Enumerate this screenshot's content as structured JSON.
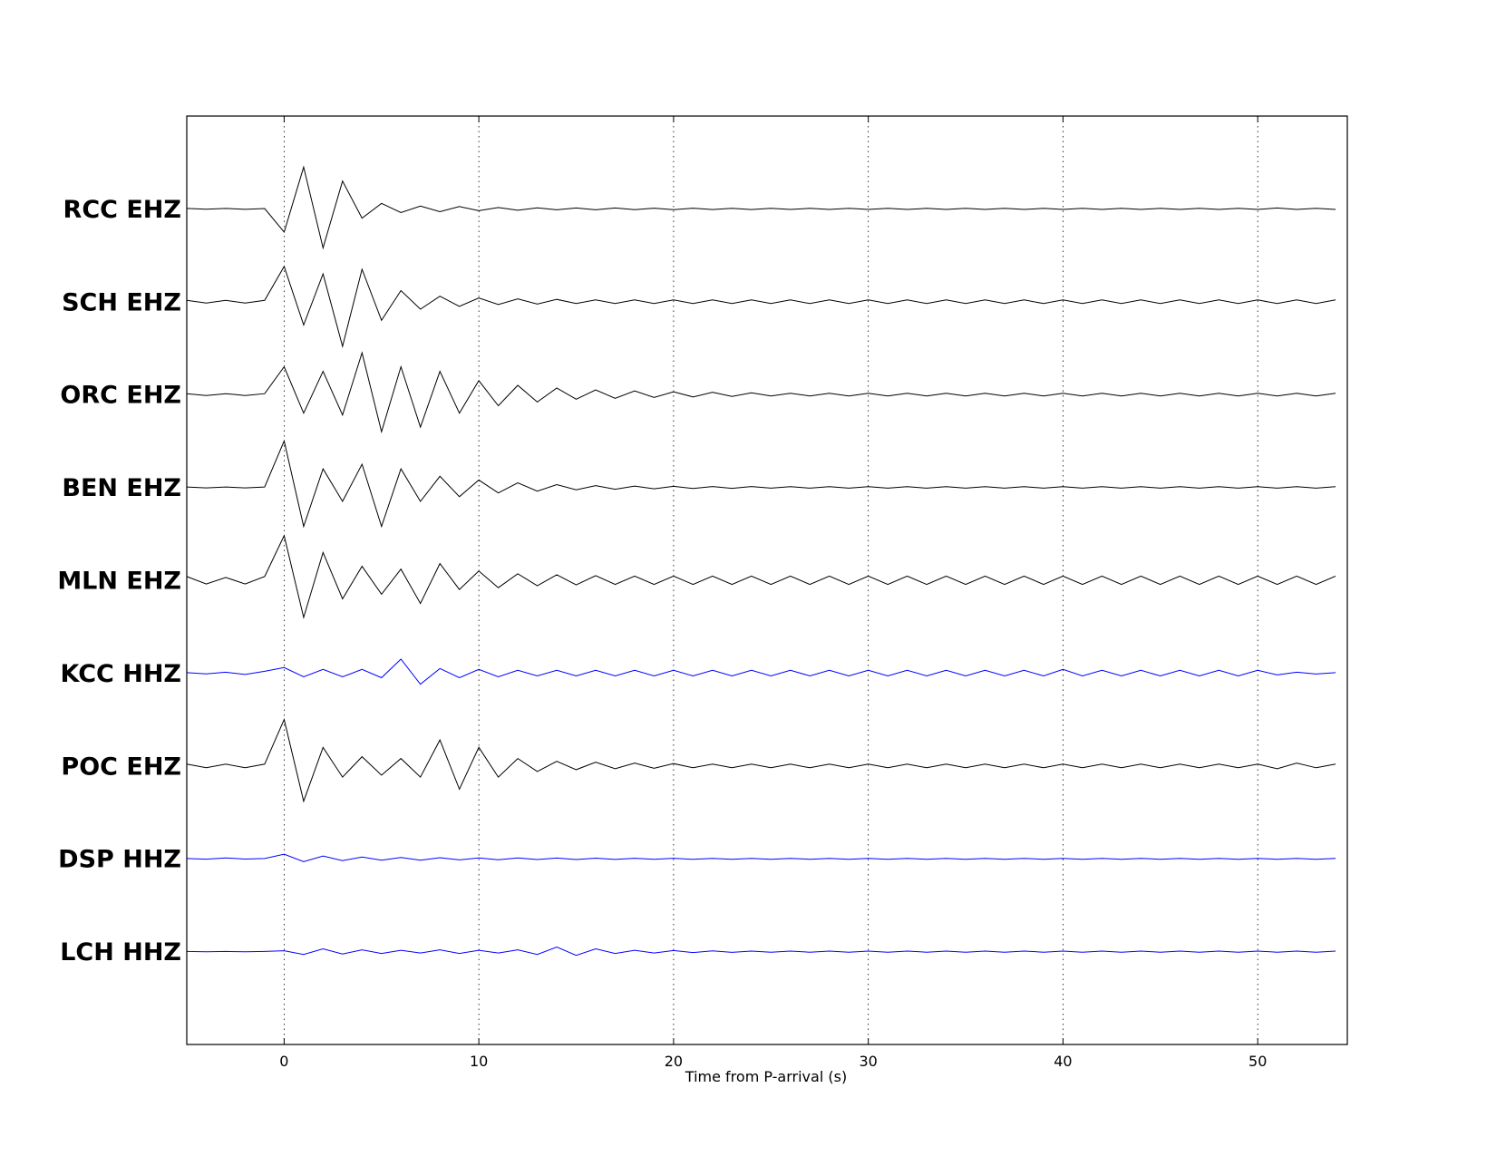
{
  "chart_data": {
    "type": "line",
    "xlabel": "Time from P-arrival (s)",
    "xlim": [
      -5,
      54.6
    ],
    "xticks": [
      0,
      10,
      20,
      30,
      40,
      50
    ],
    "grid": true,
    "x": [
      -5,
      -4,
      -3,
      -2,
      -1,
      0,
      1,
      2,
      3,
      4,
      5,
      6,
      7,
      8,
      9,
      10,
      11,
      12,
      13,
      14,
      15,
      16,
      17,
      18,
      19,
      20,
      21,
      22,
      23,
      24,
      25,
      26,
      27,
      28,
      29,
      30,
      31,
      32,
      33,
      34,
      35,
      36,
      37,
      38,
      39,
      40,
      41,
      42,
      43,
      44,
      45,
      46,
      47,
      48,
      49,
      50,
      51,
      52,
      53,
      54
    ],
    "series": [
      {
        "name": "RCC EHZ",
        "color": "#000000",
        "values": [
          0.005,
          -0.004,
          0.005,
          -0.005,
          0.004,
          -0.25,
          0.45,
          -0.42,
          0.3,
          -0.1,
          0.06,
          -0.04,
          0.03,
          -0.03,
          0.025,
          -0.02,
          0.015,
          -0.015,
          0.012,
          -0.01,
          0.01,
          -0.01,
          0.01,
          -0.008,
          0.008,
          -0.008,
          0.008,
          -0.007,
          0.007,
          -0.007,
          0.007,
          -0.006,
          0.006,
          -0.006,
          0.006,
          -0.006,
          0.006,
          -0.006,
          0.006,
          -0.006,
          0.006,
          -0.006,
          0.006,
          -0.006,
          0.006,
          -0.006,
          0.006,
          -0.006,
          0.006,
          -0.006,
          0.006,
          -0.006,
          0.006,
          -0.006,
          0.006,
          -0.006,
          0.01,
          -0.006,
          0.006,
          -0.006
        ]
      },
      {
        "name": "SCH EHZ",
        "color": "#000000",
        "values": [
          0.015,
          -0.015,
          0.015,
          -0.015,
          0.015,
          0.38,
          -0.25,
          0.3,
          -0.48,
          0.35,
          -0.2,
          0.12,
          -0.08,
          0.06,
          -0.05,
          0.04,
          -0.03,
          0.03,
          -0.025,
          0.025,
          -0.02,
          0.02,
          -0.02,
          0.02,
          -0.02,
          0.02,
          -0.02,
          0.02,
          -0.02,
          0.02,
          -0.02,
          0.02,
          -0.02,
          0.02,
          -0.02,
          0.02,
          -0.02,
          0.02,
          -0.02,
          0.02,
          -0.02,
          0.02,
          -0.02,
          0.02,
          -0.02,
          0.02,
          -0.02,
          0.02,
          -0.02,
          0.02,
          -0.02,
          0.02,
          -0.02,
          0.02,
          -0.02,
          0.02,
          -0.02,
          0.02,
          -0.02,
          0.02
        ]
      },
      {
        "name": "ORC EHZ",
        "color": "#000000",
        "values": [
          0.01,
          -0.01,
          0.01,
          -0.01,
          0.01,
          0.3,
          -0.2,
          0.25,
          -0.22,
          0.45,
          -0.4,
          0.3,
          -0.35,
          0.25,
          -0.2,
          0.15,
          -0.12,
          0.1,
          -0.08,
          0.07,
          -0.05,
          0.05,
          -0.04,
          0.04,
          -0.03,
          0.03,
          -0.025,
          0.025,
          -0.02,
          0.02,
          -0.015,
          0.015,
          -0.015,
          0.015,
          -0.015,
          0.015,
          -0.015,
          0.015,
          -0.015,
          0.015,
          -0.015,
          0.015,
          -0.015,
          0.015,
          -0.015,
          0.015,
          -0.015,
          0.015,
          -0.015,
          0.015,
          -0.015,
          0.015,
          -0.015,
          0.015,
          -0.015,
          0.015,
          -0.015,
          0.015,
          -0.015,
          0.015
        ]
      },
      {
        "name": "BEN EHZ",
        "color": "#000000",
        "values": [
          0.005,
          -0.005,
          0.005,
          -0.005,
          0.005,
          0.5,
          -0.42,
          0.2,
          -0.15,
          0.25,
          -0.42,
          0.2,
          -0.15,
          0.12,
          -0.1,
          0.08,
          -0.06,
          0.05,
          -0.04,
          0.03,
          -0.025,
          0.02,
          -0.02,
          0.015,
          -0.015,
          0.012,
          -0.012,
          0.01,
          -0.01,
          0.01,
          -0.008,
          0.008,
          -0.008,
          0.008,
          -0.008,
          0.008,
          -0.008,
          0.008,
          -0.008,
          0.008,
          -0.008,
          0.008,
          -0.008,
          0.008,
          -0.008,
          0.008,
          -0.008,
          0.008,
          -0.008,
          0.008,
          -0.008,
          0.008,
          -0.008,
          0.008,
          -0.008,
          0.008,
          -0.008,
          0.008,
          -0.008,
          0.008
        ]
      },
      {
        "name": "MLN EHZ",
        "color": "#000000",
        "values": [
          0.04,
          -0.04,
          0.03,
          -0.04,
          0.04,
          0.48,
          -0.4,
          0.3,
          -0.2,
          0.15,
          -0.15,
          0.12,
          -0.25,
          0.18,
          -0.1,
          0.1,
          -0.08,
          0.07,
          -0.06,
          0.06,
          -0.05,
          0.05,
          -0.045,
          0.045,
          -0.045,
          0.045,
          -0.045,
          0.045,
          -0.045,
          0.045,
          -0.045,
          0.045,
          -0.045,
          0.045,
          -0.045,
          0.045,
          -0.045,
          0.045,
          -0.045,
          0.045,
          -0.045,
          0.045,
          -0.045,
          0.045,
          -0.045,
          0.045,
          -0.045,
          0.045,
          -0.045,
          0.045,
          -0.045,
          0.045,
          -0.045,
          0.045,
          -0.045,
          0.045,
          -0.045,
          0.045,
          -0.045,
          0.045
        ]
      },
      {
        "name": "KCC HHZ",
        "color": "#0000ff",
        "values": [
          0.005,
          -0.008,
          0.01,
          -0.015,
          0.02,
          0.06,
          -0.04,
          0.04,
          -0.04,
          0.04,
          -0.05,
          0.15,
          -0.12,
          0.05,
          -0.05,
          0.04,
          -0.04,
          0.03,
          -0.03,
          0.03,
          -0.03,
          0.03,
          -0.03,
          0.03,
          -0.03,
          0.03,
          -0.03,
          0.03,
          -0.03,
          0.03,
          -0.03,
          0.03,
          -0.03,
          0.03,
          -0.03,
          0.03,
          -0.03,
          0.03,
          -0.03,
          0.03,
          -0.03,
          0.03,
          -0.03,
          0.03,
          -0.03,
          0.04,
          -0.03,
          0.03,
          -0.03,
          0.03,
          -0.03,
          0.03,
          -0.03,
          0.03,
          -0.03,
          0.03,
          -0.02,
          0.01,
          -0.01,
          0.005
        ]
      },
      {
        "name": "POC EHZ",
        "color": "#000000",
        "values": [
          0.02,
          -0.02,
          0.02,
          -0.02,
          0.02,
          0.5,
          -0.38,
          0.2,
          -0.12,
          0.1,
          -0.1,
          0.08,
          -0.12,
          0.28,
          -0.25,
          0.2,
          -0.12,
          0.08,
          -0.06,
          0.05,
          -0.04,
          0.04,
          -0.03,
          0.03,
          -0.025,
          0.025,
          -0.02,
          0.02,
          -0.02,
          0.02,
          -0.02,
          0.02,
          -0.02,
          0.02,
          -0.02,
          0.02,
          -0.02,
          0.02,
          -0.02,
          0.02,
          -0.02,
          0.02,
          -0.02,
          0.02,
          -0.02,
          0.02,
          -0.02,
          0.02,
          -0.02,
          0.02,
          -0.02,
          0.02,
          -0.02,
          0.02,
          -0.02,
          0.02,
          -0.03,
          0.03,
          -0.02,
          0.02
        ]
      },
      {
        "name": "DSP HHZ",
        "color": "#0000ff",
        "values": [
          0.003,
          -0.004,
          0.01,
          -0.003,
          0.003,
          0.05,
          -0.03,
          0.03,
          -0.02,
          0.02,
          -0.015,
          0.015,
          -0.015,
          0.012,
          -0.012,
          0.01,
          -0.01,
          0.01,
          -0.008,
          0.008,
          -0.008,
          0.007,
          -0.007,
          0.006,
          -0.006,
          0.006,
          -0.006,
          0.005,
          -0.005,
          0.005,
          -0.005,
          0.005,
          -0.005,
          0.005,
          -0.005,
          0.005,
          -0.005,
          0.005,
          -0.005,
          0.005,
          -0.005,
          0.005,
          -0.005,
          0.005,
          -0.005,
          0.005,
          -0.005,
          0.005,
          -0.005,
          0.005,
          -0.005,
          0.005,
          -0.005,
          0.005,
          -0.005,
          0.005,
          -0.005,
          0.005,
          -0.005,
          0.005
        ]
      },
      {
        "name": "LCH HHZ",
        "color": "#0000ff",
        "values": [
          0.002,
          -0.002,
          0.002,
          -0.002,
          0.002,
          0.01,
          -0.03,
          0.03,
          -0.025,
          0.02,
          -0.02,
          0.015,
          -0.015,
          0.02,
          -0.02,
          0.015,
          -0.015,
          0.02,
          -0.03,
          0.05,
          -0.04,
          0.03,
          -0.02,
          0.015,
          -0.015,
          0.012,
          -0.01,
          0.008,
          -0.008,
          0.006,
          -0.006,
          0.006,
          -0.006,
          0.006,
          -0.006,
          0.006,
          -0.006,
          0.006,
          -0.006,
          0.006,
          -0.006,
          0.006,
          -0.006,
          0.006,
          -0.006,
          0.006,
          -0.006,
          0.006,
          -0.006,
          0.006,
          -0.006,
          0.006,
          -0.006,
          0.006,
          -0.006,
          0.006,
          -0.006,
          0.006,
          -0.006,
          0.006
        ]
      }
    ]
  }
}
